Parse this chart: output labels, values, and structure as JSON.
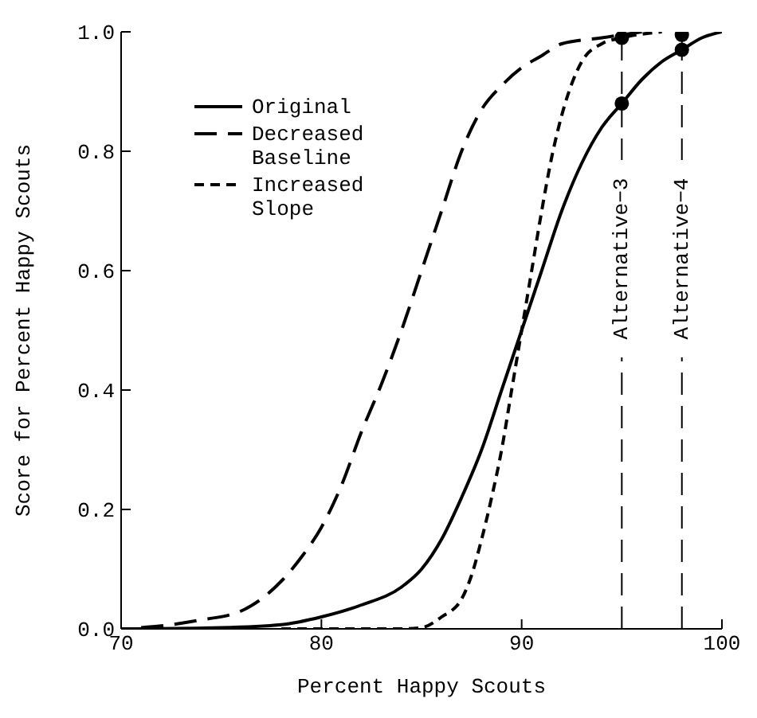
{
  "chart_data": {
    "type": "line",
    "xlabel": "Percent Happy Scouts",
    "ylabel": "Score for Percent Happy Scouts",
    "xlim": [
      70,
      100
    ],
    "xticks": [
      70,
      80,
      90,
      100
    ],
    "ylim": [
      0,
      1
    ],
    "yticks": [
      {
        "value": 0,
        "label": "0.0"
      },
      {
        "value": 0.2,
        "label": "0.2"
      },
      {
        "value": 0.4,
        "label": "0.4"
      },
      {
        "value": 0.6,
        "label": "0.6"
      },
      {
        "value": 0.8,
        "label": "0.8"
      },
      {
        "value": 1,
        "label": "1.0"
      }
    ],
    "grid": false,
    "legend": "top left",
    "marker": "none",
    "series": [
      {
        "name": "Original",
        "color": "#000000",
        "line_style": "solid",
        "x": [
          70,
          75,
          78,
          80,
          82,
          84,
          85,
          86,
          87,
          88,
          89,
          90,
          91,
          92,
          93,
          94,
          95,
          96,
          97,
          98,
          99,
          100
        ],
        "values": [
          0,
          0.002,
          0.007,
          0.02,
          0.04,
          0.07,
          0.1,
          0.15,
          0.22,
          0.3,
          0.4,
          0.5,
          0.6,
          0.7,
          0.78,
          0.84,
          0.88,
          0.92,
          0.95,
          0.97,
          0.99,
          1
        ]
      },
      {
        "name": "Decreased Baseline",
        "color": "#000000",
        "line_style": "dashed",
        "x": [
          71,
          72,
          74,
          76,
          77,
          78,
          79,
          80,
          81,
          82,
          83,
          84,
          85,
          86,
          87,
          88,
          89,
          90,
          91,
          92,
          94,
          96
        ],
        "values": [
          0.002,
          0.005,
          0.015,
          0.03,
          0.05,
          0.08,
          0.12,
          0.17,
          0.24,
          0.33,
          0.41,
          0.5,
          0.6,
          0.7,
          0.8,
          0.87,
          0.91,
          0.94,
          0.96,
          0.98,
          0.99,
          1
        ]
      },
      {
        "name": "Increased Slope",
        "color": "#000000",
        "line_style": "dotted",
        "x": [
          78,
          84,
          85,
          86,
          87,
          87.5,
          88,
          88.5,
          89,
          89.5,
          90,
          90.5,
          91,
          91.5,
          92,
          93,
          94,
          95,
          97
        ],
        "values": [
          0,
          0,
          0.002,
          0.02,
          0.05,
          0.09,
          0.15,
          0.22,
          0.3,
          0.4,
          0.5,
          0.6,
          0.7,
          0.79,
          0.86,
          0.95,
          0.98,
          0.99,
          1
        ]
      },
      {
        "type": "scatter",
        "color": "#000000",
        "marker": "circle",
        "x": [
          95,
          95,
          98,
          98
        ],
        "values": [
          0.99,
          0.88,
          0.995,
          0.97
        ]
      }
    ],
    "ref_lines": [
      {
        "axis": "x",
        "value": 95,
        "label": "Alternative−3",
        "line_style": "dashed",
        "color": "#000000"
      },
      {
        "axis": "x",
        "value": 98,
        "label": "Alternative−4",
        "line_style": "dashed",
        "color": "#000000"
      }
    ]
  }
}
